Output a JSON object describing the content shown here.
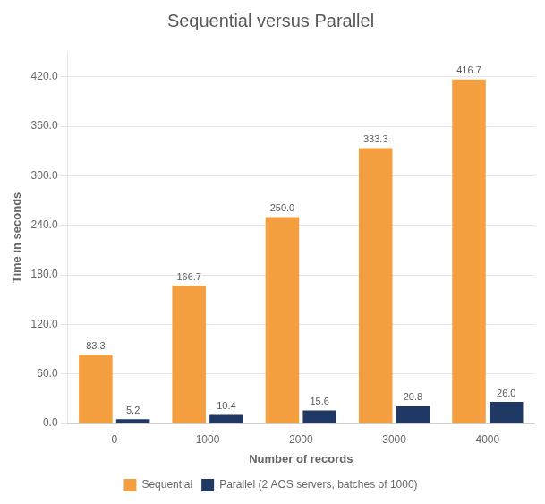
{
  "chart_data": {
    "type": "bar",
    "title": "Sequential versus Parallel",
    "x_label": "Number of records",
    "y_label": "Time in seconds",
    "categories": [
      "0",
      "1000",
      "2000",
      "3000",
      "4000"
    ],
    "series": [
      {
        "name": "Sequential",
        "color": "#F4A040",
        "values": [
          83.3,
          166.7,
          250.0,
          333.3,
          416.7
        ],
        "value_labels": [
          "83.3",
          "166.7",
          "250.0",
          "333.3",
          "416.7"
        ]
      },
      {
        "name": "Parallel (2 AOS servers, batches of 1000)",
        "color": "#1F3864",
        "values": [
          5.2,
          10.4,
          15.6,
          20.8,
          26.0
        ],
        "value_labels": [
          "5.2",
          "10.4",
          "15.6",
          "20.8",
          "26.0"
        ]
      }
    ],
    "ylim": [
      0,
      450
    ],
    "yticks": [
      {
        "value": 0,
        "label": "0.0"
      },
      {
        "value": 60,
        "label": "60.0"
      },
      {
        "value": 120,
        "label": "120.0"
      },
      {
        "value": 180,
        "label": "180.0"
      },
      {
        "value": 240,
        "label": "240.0"
      },
      {
        "value": 300,
        "label": "300.0"
      },
      {
        "value": 360,
        "label": "360.0"
      },
      {
        "value": 420,
        "label": "420.0"
      }
    ],
    "grid": "y",
    "legend": "bottom",
    "data_labels": true
  }
}
